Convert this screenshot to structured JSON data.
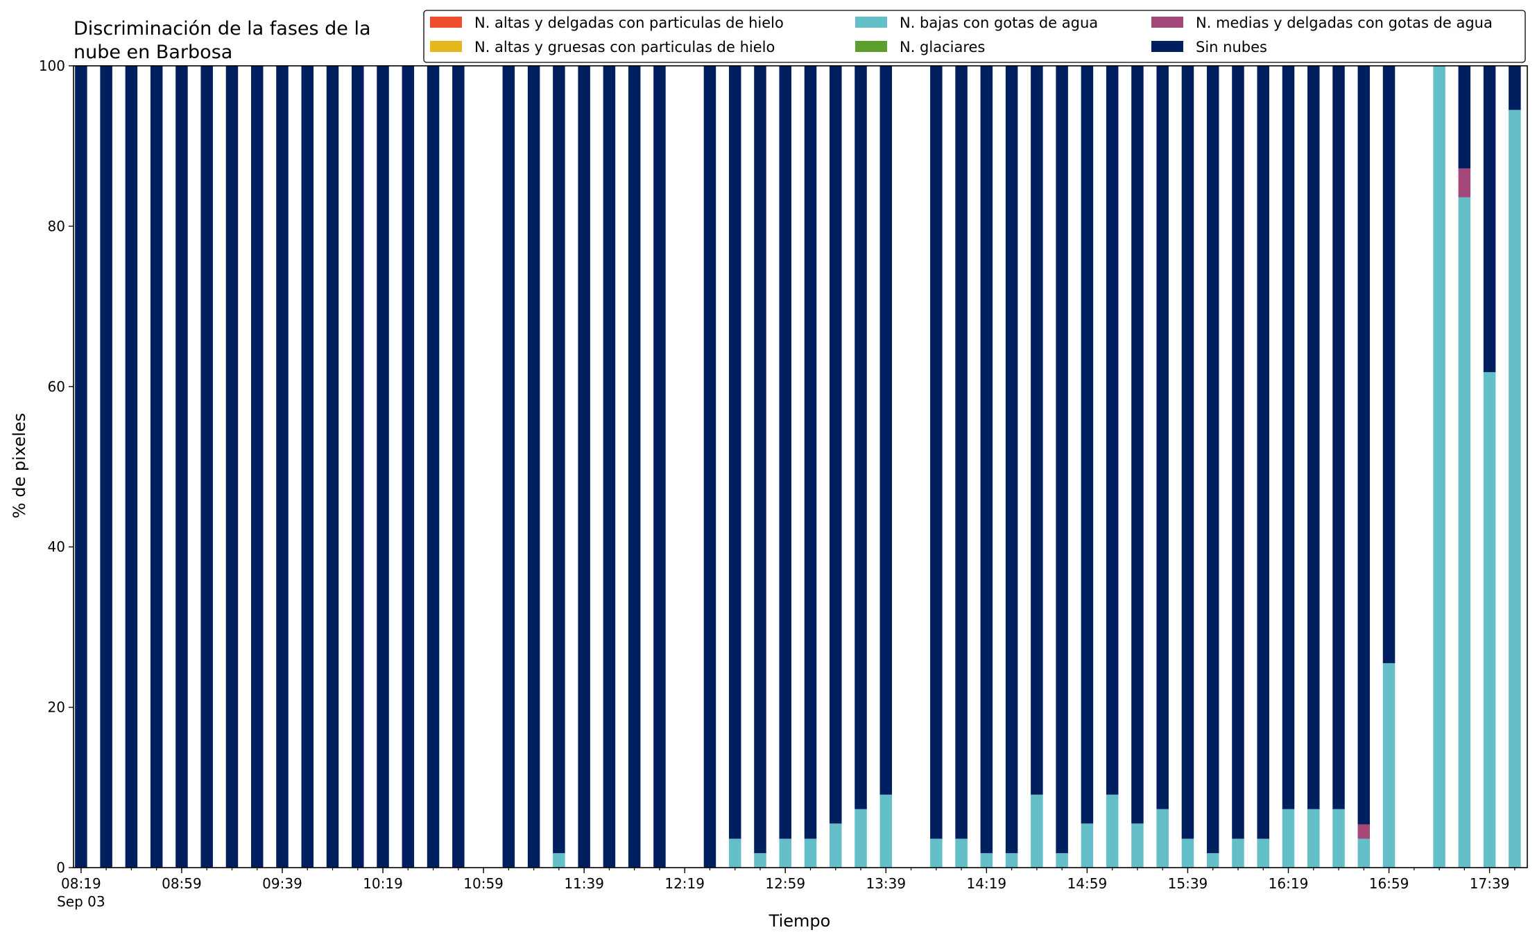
{
  "chart_data": {
    "type": "bar",
    "stacked": true,
    "title_lines": [
      "Discriminación de la fases de la",
      "nube en Barbosa"
    ],
    "xlabel": "Tiempo",
    "ylabel": "% de pixeles",
    "ylim": [
      0,
      100
    ],
    "yticks": [
      0,
      20,
      40,
      60,
      80,
      100
    ],
    "xticks": [
      {
        "time": "08:19",
        "label": "08:19",
        "sublabel": "Sep 03"
      },
      {
        "time": "08:59",
        "label": "08:59"
      },
      {
        "time": "09:39",
        "label": "09:39"
      },
      {
        "time": "10:19",
        "label": "10:19"
      },
      {
        "time": "10:59",
        "label": "10:59"
      },
      {
        "time": "11:39",
        "label": "11:39"
      },
      {
        "time": "12:19",
        "label": "12:19"
      },
      {
        "time": "12:59",
        "label": "12:59"
      },
      {
        "time": "13:39",
        "label": "13:39"
      },
      {
        "time": "14:19",
        "label": "14:19"
      },
      {
        "time": "14:59",
        "label": "14:59"
      },
      {
        "time": "15:39",
        "label": "15:39"
      },
      {
        "time": "16:19",
        "label": "16:19"
      },
      {
        "time": "16:59",
        "label": "16:59"
      },
      {
        "time": "17:39",
        "label": "17:39"
      }
    ],
    "xlim": [
      "08:16",
      "17:54"
    ],
    "minor_tick_interval_min": 10,
    "legend_position": "top-right",
    "series": [
      {
        "name": "N. altas y delgadas con particulas de hielo",
        "color": "#ee4d2e"
      },
      {
        "name": "N. altas y gruesas con particulas de hielo",
        "color": "#e6b81d"
      },
      {
        "name": "N. bajas con gotas de agua",
        "color": "#64bfc9"
      },
      {
        "name": "N. glaciares",
        "color": "#5c9f2f"
      },
      {
        "name": "N. medias y delgadas con gotas de agua",
        "color": "#a44779"
      },
      {
        "name": "Sin nubes",
        "color": "#001f5e"
      }
    ],
    "bars": [
      {
        "time": "08:19",
        "bajas": 0,
        "medias": 0,
        "sin": 100
      },
      {
        "time": "08:29",
        "bajas": 0,
        "medias": 0,
        "sin": 100
      },
      {
        "time": "08:39",
        "bajas": 0,
        "medias": 0,
        "sin": 100
      },
      {
        "time": "08:49",
        "bajas": 0,
        "medias": 0,
        "sin": 100
      },
      {
        "time": "08:59",
        "bajas": 0,
        "medias": 0,
        "sin": 100
      },
      {
        "time": "09:09",
        "bajas": 0,
        "medias": 0,
        "sin": 100
      },
      {
        "time": "09:19",
        "bajas": 0,
        "medias": 0,
        "sin": 100
      },
      {
        "time": "09:29",
        "bajas": 0,
        "medias": 0,
        "sin": 100
      },
      {
        "time": "09:39",
        "bajas": 0,
        "medias": 0,
        "sin": 100
      },
      {
        "time": "09:49",
        "bajas": 0,
        "medias": 0,
        "sin": 100
      },
      {
        "time": "09:59",
        "bajas": 0,
        "medias": 0,
        "sin": 100
      },
      {
        "time": "10:09",
        "bajas": 0,
        "medias": 0,
        "sin": 100
      },
      {
        "time": "10:19",
        "bajas": 0,
        "medias": 0,
        "sin": 100
      },
      {
        "time": "10:29",
        "bajas": 0,
        "medias": 0,
        "sin": 100
      },
      {
        "time": "10:39",
        "bajas": 0,
        "medias": 0,
        "sin": 100
      },
      {
        "time": "10:49",
        "bajas": 0,
        "medias": 0,
        "sin": 100
      },
      {
        "time": "11:09",
        "bajas": 0,
        "medias": 0,
        "sin": 100
      },
      {
        "time": "11:19",
        "bajas": 0,
        "medias": 0,
        "sin": 100
      },
      {
        "time": "11:29",
        "bajas": 1.8,
        "medias": 0,
        "sin": 98.2
      },
      {
        "time": "11:39",
        "bajas": 0,
        "medias": 0,
        "sin": 100
      },
      {
        "time": "11:49",
        "bajas": 0,
        "medias": 0,
        "sin": 100
      },
      {
        "time": "11:59",
        "bajas": 0,
        "medias": 0,
        "sin": 100
      },
      {
        "time": "12:09",
        "bajas": 0,
        "medias": 0,
        "sin": 100
      },
      {
        "time": "12:29",
        "bajas": 0,
        "medias": 0,
        "sin": 100
      },
      {
        "time": "12:39",
        "bajas": 3.6,
        "medias": 0,
        "sin": 96.4
      },
      {
        "time": "12:49",
        "bajas": 1.8,
        "medias": 0,
        "sin": 98.2
      },
      {
        "time": "12:59",
        "bajas": 3.6,
        "medias": 0,
        "sin": 96.4
      },
      {
        "time": "13:09",
        "bajas": 3.6,
        "medias": 0,
        "sin": 96.4
      },
      {
        "time": "13:19",
        "bajas": 5.5,
        "medias": 0,
        "sin": 94.5
      },
      {
        "time": "13:29",
        "bajas": 7.3,
        "medias": 0,
        "sin": 92.7
      },
      {
        "time": "13:39",
        "bajas": 9.1,
        "medias": 0,
        "sin": 90.9
      },
      {
        "time": "13:59",
        "bajas": 3.6,
        "medias": 0,
        "sin": 96.4
      },
      {
        "time": "14:09",
        "bajas": 3.6,
        "medias": 0,
        "sin": 96.4
      },
      {
        "time": "14:19",
        "bajas": 1.8,
        "medias": 0,
        "sin": 98.2
      },
      {
        "time": "14:29",
        "bajas": 1.8,
        "medias": 0,
        "sin": 98.2
      },
      {
        "time": "14:39",
        "bajas": 9.1,
        "medias": 0,
        "sin": 90.9
      },
      {
        "time": "14:49",
        "bajas": 1.8,
        "medias": 0,
        "sin": 98.2
      },
      {
        "time": "14:59",
        "bajas": 5.5,
        "medias": 0,
        "sin": 94.5
      },
      {
        "time": "15:09",
        "bajas": 9.1,
        "medias": 0,
        "sin": 90.9
      },
      {
        "time": "15:19",
        "bajas": 5.5,
        "medias": 0,
        "sin": 94.5
      },
      {
        "time": "15:29",
        "bajas": 7.3,
        "medias": 0,
        "sin": 92.7
      },
      {
        "time": "15:39",
        "bajas": 3.6,
        "medias": 0,
        "sin": 96.4
      },
      {
        "time": "15:49",
        "bajas": 1.8,
        "medias": 0,
        "sin": 98.2
      },
      {
        "time": "15:59",
        "bajas": 3.6,
        "medias": 0,
        "sin": 96.4
      },
      {
        "time": "16:09",
        "bajas": 3.6,
        "medias": 0,
        "sin": 96.4
      },
      {
        "time": "16:19",
        "bajas": 7.3,
        "medias": 0,
        "sin": 92.7
      },
      {
        "time": "16:29",
        "bajas": 7.3,
        "medias": 0,
        "sin": 92.7
      },
      {
        "time": "16:39",
        "bajas": 7.3,
        "medias": 0,
        "sin": 92.7
      },
      {
        "time": "16:49",
        "bajas": 3.6,
        "medias": 1.8,
        "sin": 94.6
      },
      {
        "time": "16:59",
        "bajas": 25.5,
        "medias": 0,
        "sin": 74.5
      },
      {
        "time": "17:19",
        "bajas": 100,
        "medias": 0,
        "sin": 0
      },
      {
        "time": "17:29",
        "bajas": 83.6,
        "medias": 3.6,
        "sin": 12.8
      },
      {
        "time": "17:39",
        "bajas": 61.8,
        "medias": 0,
        "sin": 38.2
      },
      {
        "time": "17:49",
        "bajas": 94.5,
        "medias": 0,
        "sin": 5.5
      }
    ]
  }
}
